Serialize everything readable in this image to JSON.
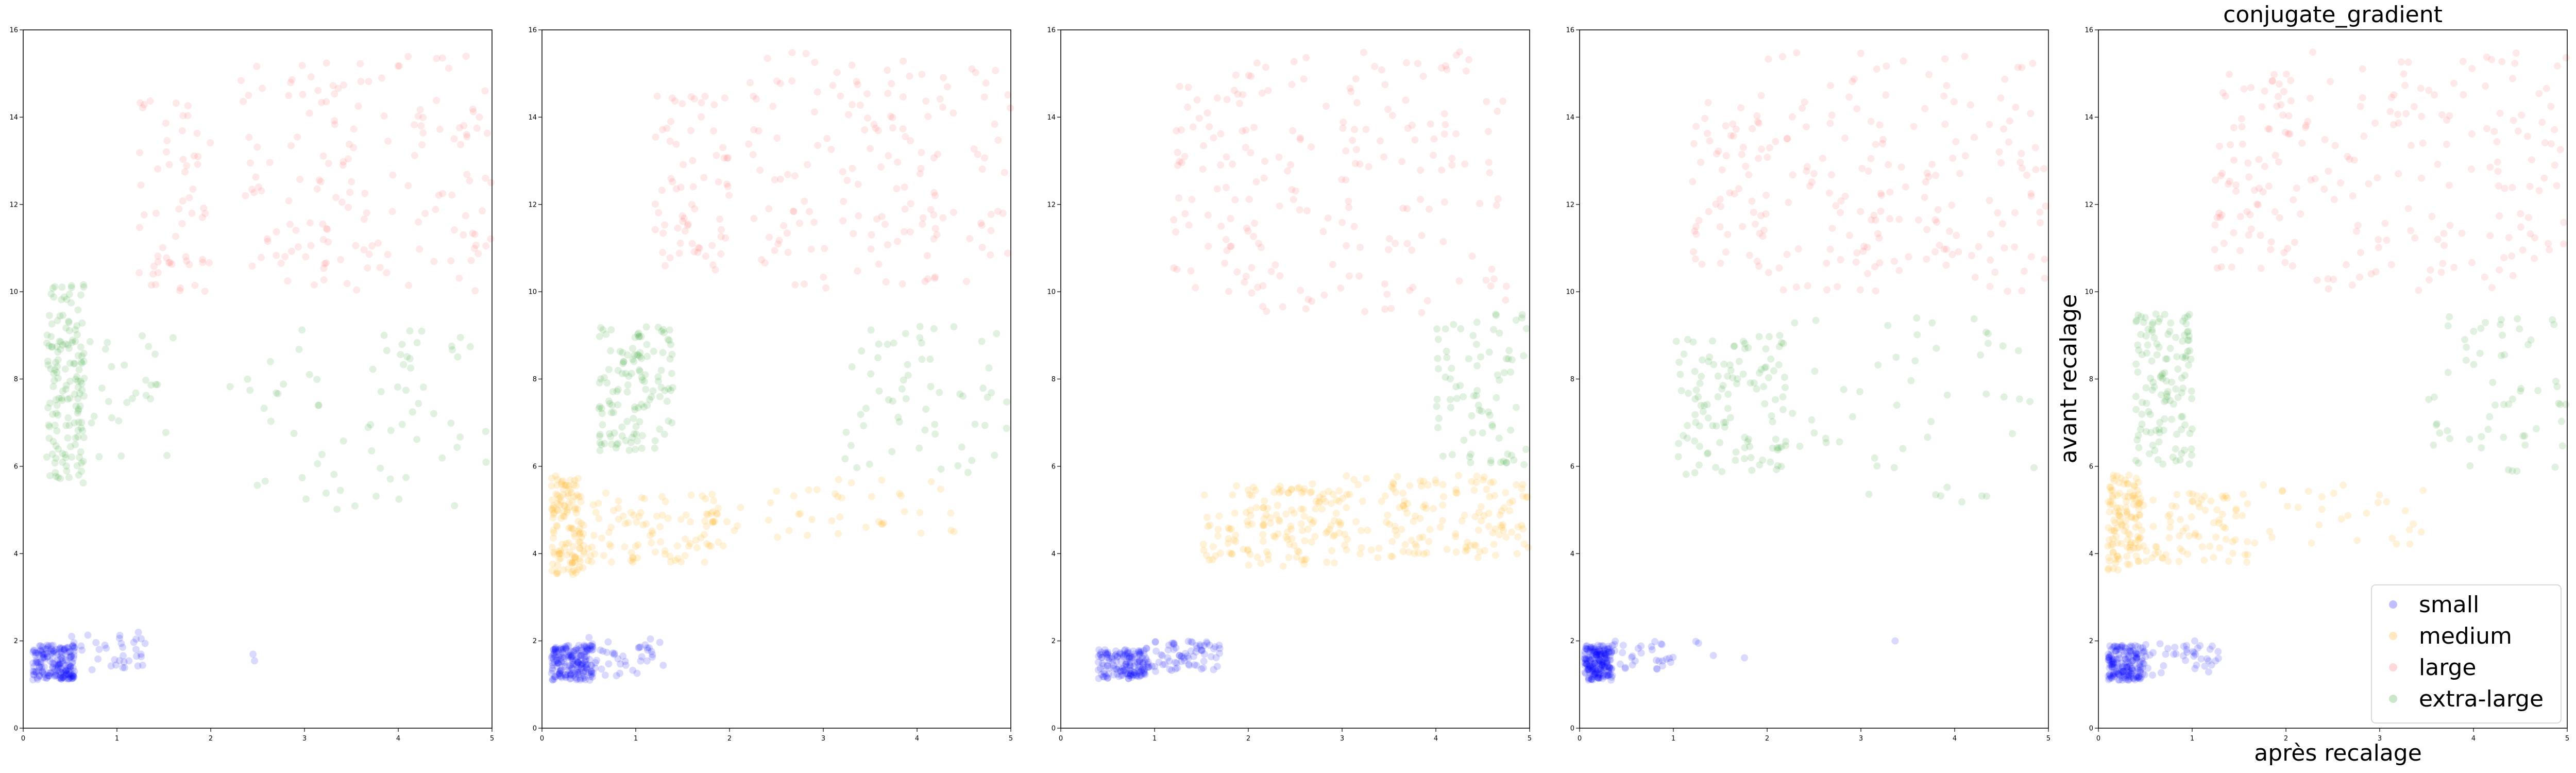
{
  "figure": {
    "xlabel": "après recalage",
    "ylabel": "avant recalage"
  },
  "chart_data": [
    {
      "type": "scatter",
      "title": "",
      "xlim": [
        0,
        5
      ],
      "ylim": [
        0,
        16
      ],
      "x_ticks": [
        0,
        1,
        2,
        3,
        4,
        5
      ],
      "y_ticks": [
        0,
        2,
        4,
        6,
        8,
        10,
        12,
        14,
        16
      ],
      "grid": false,
      "series": [
        {
          "name": "small",
          "color": "#0000ff",
          "alpha": 0.15,
          "clusters": [
            {
              "count": 190,
              "x": [
                0.1,
                0.55
              ],
              "y": [
                1.1,
                1.9
              ]
            },
            {
              "count": 35,
              "x": [
                0.5,
                1.3
              ],
              "y": [
                1.3,
                2.2
              ]
            },
            {
              "count": 2,
              "x": [
                2.4,
                2.6
              ],
              "y": [
                1.5,
                1.7
              ]
            }
          ]
        },
        {
          "name": "large",
          "color": "#ff6666",
          "alpha": 0.15,
          "clusters": [
            {
              "count": 60,
              "x": [
                1.2,
                2.0
              ],
              "y": [
                10.0,
                14.5
              ]
            },
            {
              "count": 160,
              "x": [
                2.3,
                5.0
              ],
              "y": [
                10.0,
                15.4
              ]
            }
          ]
        },
        {
          "name": "extra-large",
          "color": "#2ca02c",
          "alpha": 0.15,
          "clusters": [
            {
              "count": 150,
              "x": [
                0.25,
                0.65
              ],
              "y": [
                5.6,
                10.2
              ]
            },
            {
              "count": 30,
              "x": [
                0.6,
                1.6
              ],
              "y": [
                6.2,
                9.0
              ]
            },
            {
              "count": 70,
              "x": [
                2.2,
                5.0
              ],
              "y": [
                5.0,
                9.2
              ]
            }
          ]
        }
      ]
    },
    {
      "type": "scatter",
      "title": "",
      "xlim": [
        0,
        5
      ],
      "ylim": [
        0,
        16
      ],
      "x_ticks": [
        0,
        1,
        2,
        3,
        4,
        5
      ],
      "y_ticks": [
        0,
        2,
        4,
        6,
        8,
        10,
        12,
        14,
        16
      ],
      "grid": false,
      "series": [
        {
          "name": "small",
          "color": "#0000ff",
          "alpha": 0.15,
          "clusters": [
            {
              "count": 190,
              "x": [
                0.1,
                0.55
              ],
              "y": [
                1.1,
                1.9
              ]
            },
            {
              "count": 40,
              "x": [
                0.5,
                1.3
              ],
              "y": [
                1.2,
                2.1
              ]
            }
          ]
        },
        {
          "name": "medium",
          "color": "#ffa500",
          "alpha": 0.15,
          "clusters": [
            {
              "count": 130,
              "x": [
                0.1,
                0.45
              ],
              "y": [
                3.5,
                5.8
              ]
            },
            {
              "count": 100,
              "x": [
                0.45,
                2.0
              ],
              "y": [
                3.8,
                5.4
              ]
            },
            {
              "count": 40,
              "x": [
                2.0,
                4.5
              ],
              "y": [
                4.3,
                5.7
              ]
            }
          ]
        },
        {
          "name": "large",
          "color": "#ff6666",
          "alpha": 0.15,
          "clusters": [
            {
              "count": 70,
              "x": [
                1.2,
                2.0
              ],
              "y": [
                10.5,
                14.5
              ]
            },
            {
              "count": 160,
              "x": [
                2.2,
                5.0
              ],
              "y": [
                10.0,
                15.5
              ]
            }
          ]
        },
        {
          "name": "extra-large",
          "color": "#2ca02c",
          "alpha": 0.15,
          "clusters": [
            {
              "count": 130,
              "x": [
                0.6,
                1.4
              ],
              "y": [
                6.3,
                9.2
              ]
            },
            {
              "count": 60,
              "x": [
                3.2,
                5.0
              ],
              "y": [
                5.8,
                9.3
              ]
            }
          ]
        }
      ]
    },
    {
      "type": "scatter",
      "title": "",
      "xlim": [
        0,
        5
      ],
      "ylim": [
        0,
        16
      ],
      "x_ticks": [
        0,
        1,
        2,
        3,
        4,
        5
      ],
      "y_ticks": [
        0,
        2,
        4,
        6,
        8,
        10,
        12,
        14,
        16
      ],
      "grid": false,
      "series": [
        {
          "name": "small",
          "color": "#0000ff",
          "alpha": 0.15,
          "clusters": [
            {
              "count": 150,
              "x": [
                0.4,
                0.9
              ],
              "y": [
                1.1,
                1.8
              ]
            },
            {
              "count": 80,
              "x": [
                0.9,
                1.7
              ],
              "y": [
                1.3,
                2.0
              ]
            }
          ]
        },
        {
          "name": "medium",
          "color": "#ffa500",
          "alpha": 0.15,
          "clusters": [
            {
              "count": 150,
              "x": [
                1.5,
                3.0
              ],
              "y": [
                3.7,
                5.6
              ]
            },
            {
              "count": 150,
              "x": [
                3.0,
                5.0
              ],
              "y": [
                3.9,
                5.8
              ]
            }
          ]
        },
        {
          "name": "large",
          "color": "#ff6666",
          "alpha": 0.15,
          "clusters": [
            {
              "count": 60,
              "x": [
                1.2,
                2.0
              ],
              "y": [
                10.0,
                15.0
              ]
            },
            {
              "count": 150,
              "x": [
                2.0,
                4.8
              ],
              "y": [
                9.5,
                15.5
              ]
            }
          ]
        },
        {
          "name": "extra-large",
          "color": "#2ca02c",
          "alpha": 0.15,
          "clusters": [
            {
              "count": 80,
              "x": [
                4.0,
                5.0
              ],
              "y": [
                6.0,
                9.5
              ]
            }
          ]
        }
      ]
    },
    {
      "type": "scatter",
      "title": "",
      "xlim": [
        0,
        5
      ],
      "ylim": [
        0,
        16
      ],
      "x_ticks": [
        0,
        1,
        2,
        3,
        4,
        5
      ],
      "y_ticks": [
        0,
        2,
        4,
        6,
        8,
        10,
        12,
        14,
        16
      ],
      "grid": false,
      "series": [
        {
          "name": "small",
          "color": "#0000ff",
          "alpha": 0.15,
          "clusters": [
            {
              "count": 200,
              "x": [
                0.05,
                0.35
              ],
              "y": [
                1.1,
                1.9
              ]
            },
            {
              "count": 30,
              "x": [
                0.35,
                1.0
              ],
              "y": [
                1.3,
                2.0
              ]
            },
            {
              "count": 5,
              "x": [
                1.0,
                3.5
              ],
              "y": [
                1.5,
                2.0
              ]
            }
          ]
        },
        {
          "name": "large",
          "color": "#ff6666",
          "alpha": 0.15,
          "clusters": [
            {
              "count": 60,
              "x": [
                1.2,
                2.0
              ],
              "y": [
                10.5,
                14.5
              ]
            },
            {
              "count": 170,
              "x": [
                2.0,
                5.0
              ],
              "y": [
                10.0,
                15.5
              ]
            }
          ]
        },
        {
          "name": "extra-large",
          "color": "#2ca02c",
          "alpha": 0.15,
          "clusters": [
            {
              "count": 120,
              "x": [
                1.0,
                2.2
              ],
              "y": [
                5.8,
                9.0
              ]
            },
            {
              "count": 50,
              "x": [
                2.2,
                5.0
              ],
              "y": [
                5.0,
                9.5
              ]
            }
          ]
        }
      ]
    },
    {
      "type": "scatter",
      "title": "conjugate_gradient",
      "xlim": [
        0,
        5
      ],
      "ylim": [
        0,
        16
      ],
      "x_ticks": [
        0,
        1,
        2,
        3,
        4,
        5
      ],
      "y_ticks": [
        0,
        2,
        4,
        6,
        8,
        10,
        12,
        14,
        16
      ],
      "grid": false,
      "legend_position": "bottom-right",
      "legend": [
        "small",
        "medium",
        "large",
        "extra-large"
      ],
      "series": [
        {
          "name": "small",
          "color": "#0000ff",
          "alpha": 0.15,
          "clusters": [
            {
              "count": 180,
              "x": [
                0.1,
                0.5
              ],
              "y": [
                1.1,
                1.9
              ]
            },
            {
              "count": 40,
              "x": [
                0.5,
                1.3
              ],
              "y": [
                1.2,
                2.0
              ]
            }
          ]
        },
        {
          "name": "medium",
          "color": "#ffa500",
          "alpha": 0.15,
          "clusters": [
            {
              "count": 120,
              "x": [
                0.1,
                0.45
              ],
              "y": [
                3.6,
                5.8
              ]
            },
            {
              "count": 80,
              "x": [
                0.45,
                1.6
              ],
              "y": [
                3.8,
                5.4
              ]
            },
            {
              "count": 30,
              "x": [
                1.6,
                3.5
              ],
              "y": [
                4.2,
                5.6
              ]
            }
          ]
        },
        {
          "name": "large",
          "color": "#ff6666",
          "alpha": 0.15,
          "clusters": [
            {
              "count": 70,
              "x": [
                1.2,
                2.0
              ],
              "y": [
                10.5,
                15.0
              ]
            },
            {
              "count": 160,
              "x": [
                2.0,
                5.0
              ],
              "y": [
                10.0,
                15.5
              ]
            }
          ]
        },
        {
          "name": "extra-large",
          "color": "#2ca02c",
          "alpha": 0.15,
          "clusters": [
            {
              "count": 130,
              "x": [
                0.4,
                1.0
              ],
              "y": [
                6.0,
                9.5
              ]
            },
            {
              "count": 60,
              "x": [
                3.5,
                5.0
              ],
              "y": [
                5.8,
                9.5
              ]
            }
          ]
        }
      ]
    }
  ]
}
